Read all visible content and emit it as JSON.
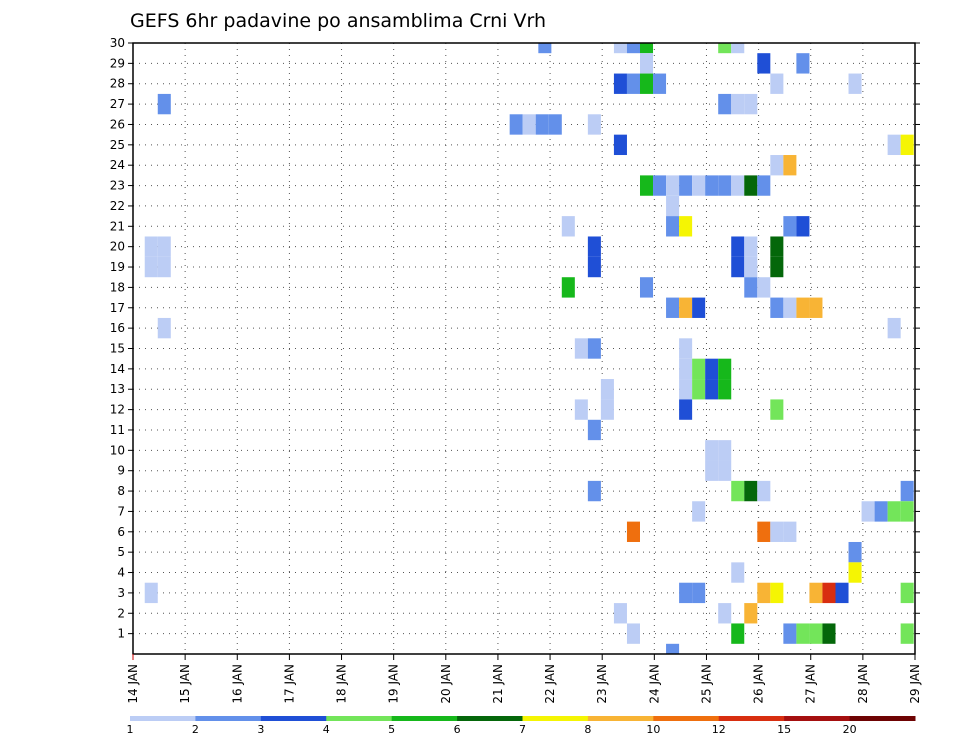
{
  "chart_data": {
    "type": "heatmap",
    "title": "GEFS 6hr padavine po ansamblima Crni Vrh",
    "xlabel": "",
    "ylabel": "",
    "x_axis": {
      "unit": "day",
      "range": [
        14,
        29
      ],
      "tick_labels": [
        "14 JAN",
        "15 JAN",
        "16 JAN",
        "17 JAN",
        "18 JAN",
        "19 JAN",
        "20 JAN",
        "21 JAN",
        "22 JAN",
        "23 JAN",
        "24 JAN",
        "25 JAN",
        "26 JAN",
        "27 JAN",
        "28 JAN",
        "29 JAN"
      ]
    },
    "y_axis": {
      "range": [
        0,
        30
      ],
      "tick_labels": [
        "1",
        "2",
        "3",
        "4",
        "5",
        "6",
        "7",
        "8",
        "9",
        "10",
        "11",
        "12",
        "13",
        "14",
        "15",
        "16",
        "17",
        "18",
        "19",
        "20",
        "21",
        "22",
        "23",
        "24",
        "25",
        "26",
        "27",
        "28",
        "29",
        "30"
      ]
    },
    "grid": true,
    "colorbar": {
      "placement": "bottom",
      "colors": [
        "#bccdf5",
        "#6390ea",
        "#1f4fd6",
        "#73e55a",
        "#16b81b",
        "#04670a",
        "#f5f503",
        "#f8b435",
        "#ef6f0e",
        "#d82e10",
        "#a50f0f",
        "#6e0303"
      ],
      "boundaries": [
        1,
        2,
        3,
        4,
        5,
        6,
        7,
        8,
        10,
        12,
        15,
        20
      ],
      "labels": [
        "1",
        "2",
        "3",
        "4",
        "5",
        "6",
        "7",
        "8",
        "10",
        "12",
        "15",
        "20"
      ]
    },
    "cells": [
      {
        "m": 30,
        "d": 21.9,
        "v": 2
      },
      {
        "m": 30,
        "d": 23.35,
        "v": 1
      },
      {
        "m": 30,
        "d": 23.6,
        "v": 2
      },
      {
        "m": 30,
        "d": 23.85,
        "v": 5
      },
      {
        "m": 30,
        "d": 25.35,
        "v": 4
      },
      {
        "m": 30,
        "d": 25.6,
        "v": 1
      },
      {
        "m": 29,
        "d": 23.85,
        "v": 1
      },
      {
        "m": 29,
        "d": 26.1,
        "v": 3
      },
      {
        "m": 29,
        "d": 26.85,
        "v": 2
      },
      {
        "m": 28,
        "d": 23.35,
        "v": 3
      },
      {
        "m": 28,
        "d": 23.6,
        "v": 2
      },
      {
        "m": 28,
        "d": 23.85,
        "v": 5
      },
      {
        "m": 28,
        "d": 24.1,
        "v": 2
      },
      {
        "m": 28,
        "d": 26.35,
        "v": 1
      },
      {
        "m": 28,
        "d": 27.85,
        "v": 1
      },
      {
        "m": 27,
        "d": 14.6,
        "v": 2
      },
      {
        "m": 27,
        "d": 25.35,
        "v": 2
      },
      {
        "m": 27,
        "d": 25.6,
        "v": 1
      },
      {
        "m": 27,
        "d": 25.85,
        "v": 1
      },
      {
        "m": 26,
        "d": 21.35,
        "v": 2
      },
      {
        "m": 26,
        "d": 21.6,
        "v": 1
      },
      {
        "m": 26,
        "d": 21.85,
        "v": 2
      },
      {
        "m": 26,
        "d": 22.1,
        "v": 2
      },
      {
        "m": 26,
        "d": 22.85,
        "v": 1
      },
      {
        "m": 25,
        "d": 23.35,
        "v": 3
      },
      {
        "m": 25,
        "d": 28.6,
        "v": 1
      },
      {
        "m": 25,
        "d": 28.85,
        "v": 7
      },
      {
        "m": 24,
        "d": 26.35,
        "v": 1
      },
      {
        "m": 24,
        "d": 26.6,
        "v": 8
      },
      {
        "m": 23,
        "d": 23.85,
        "v": 5
      },
      {
        "m": 23,
        "d": 24.1,
        "v": 2
      },
      {
        "m": 23,
        "d": 24.35,
        "v": 1
      },
      {
        "m": 23,
        "d": 24.6,
        "v": 2
      },
      {
        "m": 23,
        "d": 24.85,
        "v": 1
      },
      {
        "m": 23,
        "d": 25.1,
        "v": 2
      },
      {
        "m": 23,
        "d": 25.35,
        "v": 2
      },
      {
        "m": 23,
        "d": 25.6,
        "v": 1
      },
      {
        "m": 23,
        "d": 25.85,
        "v": 6
      },
      {
        "m": 23,
        "d": 26.1,
        "v": 2
      },
      {
        "m": 22,
        "d": 24.35,
        "v": 1
      },
      {
        "m": 21,
        "d": 22.35,
        "v": 1
      },
      {
        "m": 21,
        "d": 24.35,
        "v": 2
      },
      {
        "m": 21,
        "d": 24.6,
        "v": 7
      },
      {
        "m": 21,
        "d": 26.6,
        "v": 2
      },
      {
        "m": 21,
        "d": 26.85,
        "v": 3
      },
      {
        "m": 20,
        "d": 14.35,
        "v": 1
      },
      {
        "m": 20,
        "d": 14.6,
        "v": 1
      },
      {
        "m": 20,
        "d": 22.85,
        "v": 3
      },
      {
        "m": 20,
        "d": 25.6,
        "v": 3
      },
      {
        "m": 20,
        "d": 25.85,
        "v": 1
      },
      {
        "m": 20,
        "d": 26.35,
        "v": 6
      },
      {
        "m": 19,
        "d": 14.35,
        "v": 1
      },
      {
        "m": 19,
        "d": 14.6,
        "v": 1
      },
      {
        "m": 19,
        "d": 22.85,
        "v": 3
      },
      {
        "m": 19,
        "d": 25.6,
        "v": 3
      },
      {
        "m": 19,
        "d": 25.85,
        "v": 1
      },
      {
        "m": 19,
        "d": 26.35,
        "v": 6
      },
      {
        "m": 18,
        "d": 22.35,
        "v": 5
      },
      {
        "m": 18,
        "d": 23.85,
        "v": 2
      },
      {
        "m": 18,
        "d": 25.85,
        "v": 2
      },
      {
        "m": 18,
        "d": 26.1,
        "v": 1
      },
      {
        "m": 17,
        "d": 24.35,
        "v": 2
      },
      {
        "m": 17,
        "d": 24.6,
        "v": 8
      },
      {
        "m": 17,
        "d": 24.85,
        "v": 3
      },
      {
        "m": 17,
        "d": 26.35,
        "v": 2
      },
      {
        "m": 17,
        "d": 26.6,
        "v": 1
      },
      {
        "m": 17,
        "d": 26.85,
        "v": 8
      },
      {
        "m": 17,
        "d": 27.1,
        "v": 8
      },
      {
        "m": 16,
        "d": 14.6,
        "v": 1
      },
      {
        "m": 16,
        "d": 28.6,
        "v": 1
      },
      {
        "m": 15,
        "d": 22.6,
        "v": 1
      },
      {
        "m": 15,
        "d": 22.85,
        "v": 2
      },
      {
        "m": 15,
        "d": 24.6,
        "v": 1
      },
      {
        "m": 14,
        "d": 24.6,
        "v": 1
      },
      {
        "m": 14,
        "d": 24.85,
        "v": 4
      },
      {
        "m": 14,
        "d": 25.1,
        "v": 3
      },
      {
        "m": 14,
        "d": 25.35,
        "v": 5
      },
      {
        "m": 13,
        "d": 23.1,
        "v": 1
      },
      {
        "m": 13,
        "d": 24.6,
        "v": 1
      },
      {
        "m": 13,
        "d": 24.85,
        "v": 4
      },
      {
        "m": 13,
        "d": 25.1,
        "v": 3
      },
      {
        "m": 13,
        "d": 25.35,
        "v": 5
      },
      {
        "m": 12,
        "d": 22.6,
        "v": 1
      },
      {
        "m": 12,
        "d": 23.1,
        "v": 1
      },
      {
        "m": 12,
        "d": 24.6,
        "v": 3
      },
      {
        "m": 12,
        "d": 26.35,
        "v": 4
      },
      {
        "m": 11,
        "d": 22.85,
        "v": 2
      },
      {
        "m": 10,
        "d": 25.1,
        "v": 1
      },
      {
        "m": 10,
        "d": 25.35,
        "v": 1
      },
      {
        "m": 9,
        "d": 25.1,
        "v": 1
      },
      {
        "m": 9,
        "d": 25.35,
        "v": 1
      },
      {
        "m": 8,
        "d": 22.85,
        "v": 2
      },
      {
        "m": 8,
        "d": 25.6,
        "v": 4
      },
      {
        "m": 8,
        "d": 25.85,
        "v": 6
      },
      {
        "m": 8,
        "d": 26.1,
        "v": 1
      },
      {
        "m": 8,
        "d": 28.85,
        "v": 2
      },
      {
        "m": 7,
        "d": 24.85,
        "v": 1
      },
      {
        "m": 7,
        "d": 28.1,
        "v": 1
      },
      {
        "m": 7,
        "d": 28.35,
        "v": 2
      },
      {
        "m": 7,
        "d": 28.6,
        "v": 4
      },
      {
        "m": 7,
        "d": 28.85,
        "v": 4
      },
      {
        "m": 6,
        "d": 23.6,
        "v": 10
      },
      {
        "m": 6,
        "d": 26.1,
        "v": 10
      },
      {
        "m": 6,
        "d": 26.35,
        "v": 1
      },
      {
        "m": 6,
        "d": 26.6,
        "v": 1
      },
      {
        "m": 5,
        "d": 27.85,
        "v": 2
      },
      {
        "m": 4,
        "d": 25.6,
        "v": 1
      },
      {
        "m": 4,
        "d": 27.85,
        "v": 7
      },
      {
        "m": 3,
        "d": 14.35,
        "v": 1
      },
      {
        "m": 3,
        "d": 24.6,
        "v": 2
      },
      {
        "m": 3,
        "d": 24.85,
        "v": 2
      },
      {
        "m": 3,
        "d": 26.1,
        "v": 8
      },
      {
        "m": 3,
        "d": 26.35,
        "v": 7
      },
      {
        "m": 3,
        "d": 27.1,
        "v": 8
      },
      {
        "m": 3,
        "d": 27.35,
        "v": 12
      },
      {
        "m": 3,
        "d": 27.6,
        "v": 3
      },
      {
        "m": 3,
        "d": 28.85,
        "v": 4
      },
      {
        "m": 2,
        "d": 23.35,
        "v": 1
      },
      {
        "m": 2,
        "d": 25.35,
        "v": 1
      },
      {
        "m": 2,
        "d": 25.85,
        "v": 8
      },
      {
        "m": 1,
        "d": 23.6,
        "v": 1
      },
      {
        "m": 1,
        "d": 25.6,
        "v": 5
      },
      {
        "m": 1,
        "d": 26.6,
        "v": 2
      },
      {
        "m": 1,
        "d": 26.85,
        "v": 4
      },
      {
        "m": 1,
        "d": 27.1,
        "v": 4
      },
      {
        "m": 1,
        "d": 27.35,
        "v": 6
      },
      {
        "m": 1,
        "d": 28.85,
        "v": 4
      },
      {
        "m": 0,
        "d": 24.35,
        "v": 2
      }
    ]
  }
}
